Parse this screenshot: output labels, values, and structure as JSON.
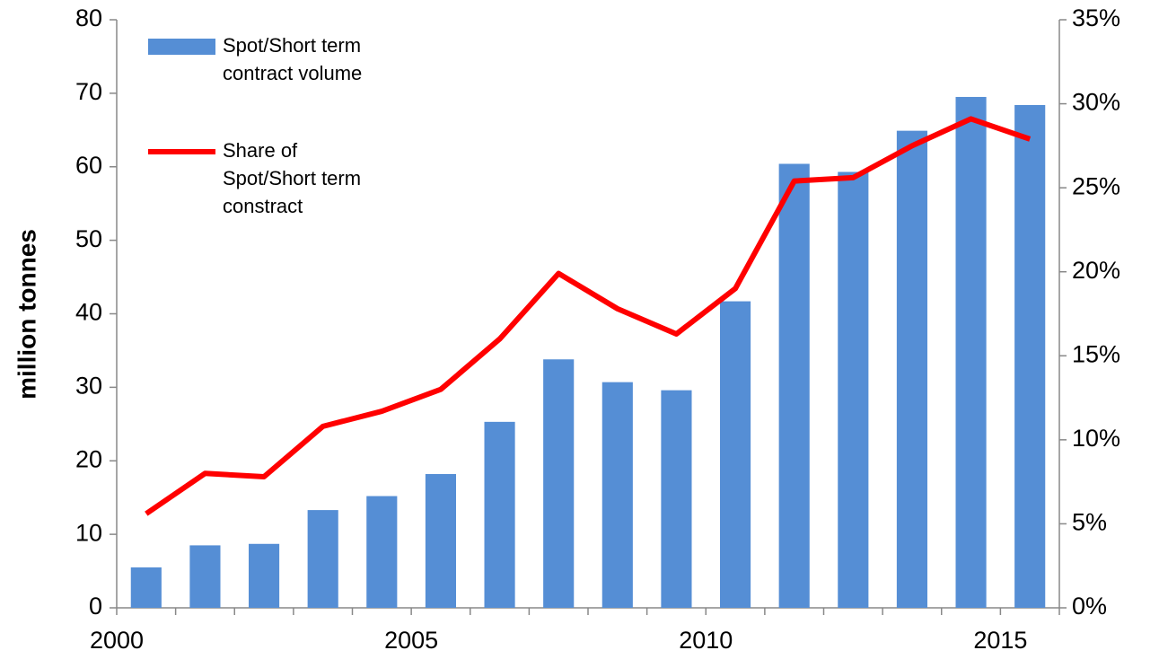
{
  "chart_data": {
    "type": "bar-line",
    "y_label": "million tonnes",
    "categories": [
      2000,
      null,
      null,
      null,
      null,
      2005,
      null,
      null,
      null,
      null,
      2010,
      null,
      null,
      null,
      null,
      2015
    ],
    "series": [
      {
        "name": "Spot/Short term contract volume",
        "type": "bar",
        "color": "#558ed5",
        "axis": "y",
        "values": [
          5.5,
          8.5,
          8.7,
          13.3,
          15.2,
          18.2,
          25.3,
          33.8,
          30.7,
          29.6,
          41.7,
          60.4,
          59.3,
          64.9,
          69.5,
          68.4
        ]
      },
      {
        "name": "Share of Spot/Short term constract",
        "type": "line",
        "color": "#ff0000",
        "axis": "y2",
        "values": [
          5.6,
          8.0,
          7.8,
          10.8,
          11.7,
          13.0,
          16.0,
          19.9,
          17.8,
          16.3,
          19.0,
          25.4,
          25.6,
          27.5,
          29.1,
          27.9
        ]
      }
    ],
    "ylim": [
      0,
      80
    ],
    "yticks": [
      0,
      10,
      20,
      30,
      40,
      50,
      60,
      70,
      80
    ],
    "y2lim": [
      0,
      35
    ],
    "y2ticks": [
      {
        "value": 0,
        "label": "0%"
      },
      {
        "value": 5,
        "label": "5%"
      },
      {
        "value": 10,
        "label": "10%"
      },
      {
        "value": 15,
        "label": "15%"
      },
      {
        "value": 20,
        "label": "20%"
      },
      {
        "value": 25,
        "label": "25%"
      },
      {
        "value": 30,
        "label": "30%"
      },
      {
        "value": 35,
        "label": "35%"
      }
    ],
    "grid": false,
    "legend": "upper left"
  }
}
